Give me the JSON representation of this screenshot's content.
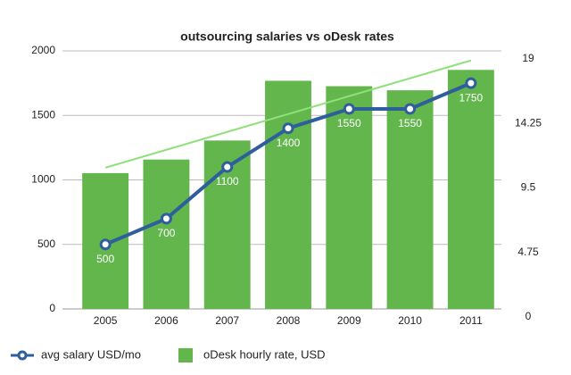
{
  "chart_data": {
    "type": "bar_line",
    "title": "outsourcing salaries vs oDesk rates",
    "categories": [
      "2005",
      "2006",
      "2007",
      "2008",
      "2009",
      "2010",
      "2011"
    ],
    "series": [
      {
        "name": "oDesk hourly rate, USD",
        "type": "bar",
        "axis": "y2",
        "color": "#62b64c",
        "values": [
          10.0,
          11.0,
          12.4,
          16.8,
          16.4,
          16.1,
          17.6
        ]
      },
      {
        "name": "avg salary USD/mo",
        "type": "line",
        "axis": "y",
        "color": "#2e5f9c",
        "values": [
          500,
          700,
          1100,
          1400,
          1550,
          1550,
          1750
        ]
      }
    ],
    "trendline": {
      "color": "#8ee07a",
      "axis": "y2",
      "values": [
        10.4,
        18.3
      ]
    },
    "ylim": [
      0,
      2000
    ],
    "yticks": [
      0,
      500,
      1000,
      1500,
      2000
    ],
    "y2lim": [
      0,
      19
    ],
    "y2ticks": [
      0,
      4.75,
      9.5,
      14.25,
      19
    ],
    "grid": true,
    "legend": "bottom"
  }
}
